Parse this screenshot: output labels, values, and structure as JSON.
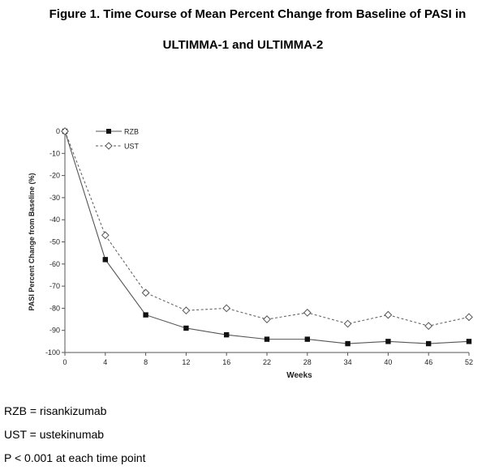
{
  "figure": {
    "title_line_1": "Figure 1. Time Course of Mean Percent Change from Baseline of PASI in",
    "title_line_2": "ULTIMMA-1 and ULTIMMA-2"
  },
  "footnotes": [
    "RZB = risankizumab",
    "UST = ustekinumab",
    "P < 0.001 at each time point"
  ],
  "chart_data": {
    "type": "line",
    "title": "Figure 1. Time Course of Mean Percent Change from Baseline of PASI in ULTIMMA-1 and ULTIMMA-2",
    "xlabel": "Weeks",
    "ylabel": "PASI Percent Change from Baseline (%)",
    "x": [
      0,
      4,
      8,
      12,
      16,
      22,
      28,
      34,
      40,
      46,
      52
    ],
    "x_tick_labels": [
      "0",
      "4",
      "8",
      "12",
      "16",
      "22",
      "28",
      "34",
      "40",
      "46",
      "52"
    ],
    "y_ticks": [
      0,
      -10,
      -20,
      -30,
      -40,
      -50,
      -60,
      -70,
      -80,
      -90,
      -100
    ],
    "ylim": [
      -100,
      0
    ],
    "grid": false,
    "legend_position": "top-left",
    "series": [
      {
        "name": "RZB",
        "marker": "filled-square",
        "line_style": "solid",
        "color": "#000000",
        "values": [
          0,
          -58,
          -83,
          -89,
          -92,
          -94,
          -94,
          -96,
          -95,
          -96,
          -95
        ]
      },
      {
        "name": "UST",
        "marker": "open-diamond",
        "line_style": "dashed",
        "color": "#000000",
        "values": [
          0,
          -47,
          -73,
          -81,
          -80,
          -85,
          -82,
          -87,
          -83,
          -88,
          -84
        ]
      }
    ]
  }
}
